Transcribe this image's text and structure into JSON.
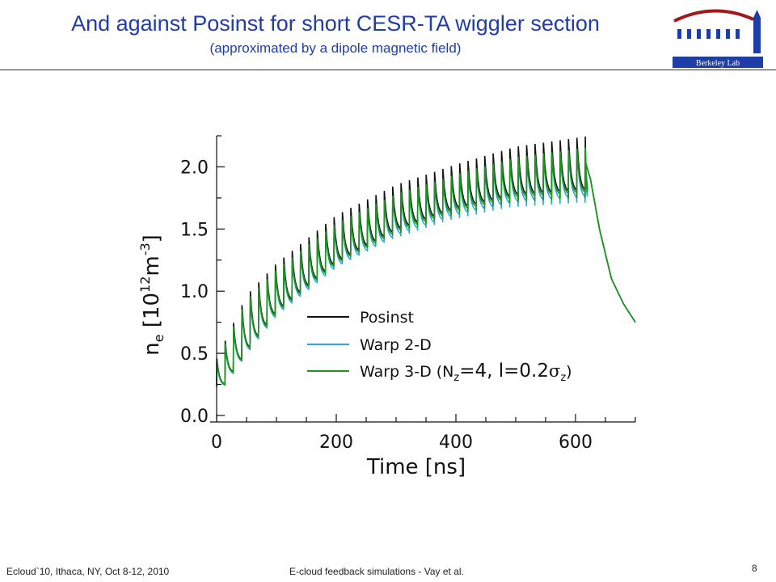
{
  "slide": {
    "title": "And against Posinst for short CESR-TA wiggler section",
    "subtitle": "(approximated by a dipole magnetic field)",
    "logo_text": "Berkeley Lab",
    "footer_left": "Ecloud`10, Ithaca, NY, Oct 8-12, 2010",
    "footer_center": "E-cloud feedback simulations - Vay et al.",
    "page_number": "8"
  },
  "chart_data": {
    "type": "line",
    "xlabel": "Time [ns]",
    "ylabel_main": "n",
    "ylabel_sub": "e",
    "ylabel_rest": " [10",
    "ylabel_exp": "12",
    "ylabel_unit": "m",
    "ylabel_unit_exp": "-3",
    "ylabel_close": "]",
    "xlim": [
      0,
      700
    ],
    "ylim": [
      0,
      2.25
    ],
    "xticks": [
      0,
      200,
      400,
      600
    ],
    "yticks": [
      0.0,
      0.5,
      1.0,
      1.5,
      2.0
    ],
    "xtick_labels": [
      "0",
      "200",
      "400",
      "600"
    ],
    "ytick_labels": [
      "0.0",
      "0.5",
      "1.0",
      "1.5",
      "2.0"
    ],
    "grid": false,
    "legend_position": "center-right",
    "bunch_train": {
      "bunch_spacing_ns": 14,
      "n_bunches": 45,
      "last_bunch_ns": 616,
      "envelope_times_ns": [
        0,
        50,
        100,
        200,
        300,
        400,
        500,
        616
      ],
      "envelope_peak": [
        0.45,
        0.95,
        1.2,
        1.58,
        1.82,
        1.98,
        2.12,
        2.2
      ],
      "envelope_trough": [
        0.15,
        0.5,
        0.82,
        1.22,
        1.48,
        1.65,
        1.76,
        1.8
      ]
    },
    "decay": {
      "x": [
        616,
        625,
        640,
        660,
        680,
        700
      ],
      "y": [
        2.05,
        1.9,
        1.5,
        1.1,
        0.9,
        0.75
      ]
    },
    "series": [
      {
        "name": "Posinst",
        "color": "#111111",
        "peak_scale": 1.02,
        "trough_scale": 1.0
      },
      {
        "name": "Warp 2-D",
        "color": "#29a9e0",
        "peak_scale": 0.98,
        "trough_scale": 0.97
      },
      {
        "name": "Warp 3-D",
        "color": "#1a9a1a",
        "peak_scale": 0.98,
        "trough_scale": 0.99
      }
    ],
    "legend_extra": {
      "open": "(N",
      "sub_z": "z",
      "mid": "=4, l=0.2",
      "sigma": "σ",
      "sub_z2": "z",
      "close": ")"
    }
  }
}
